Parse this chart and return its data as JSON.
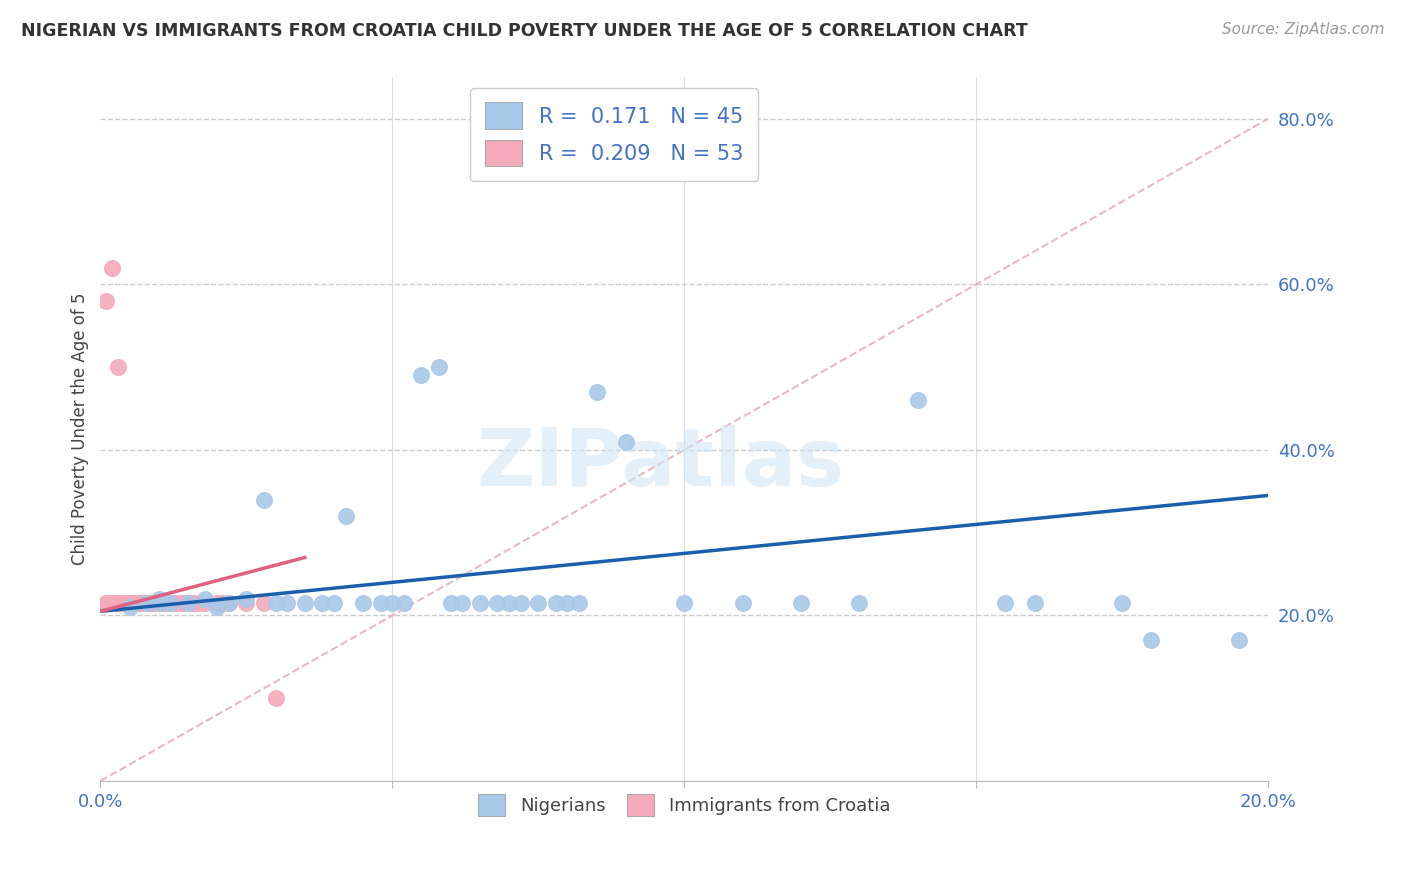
{
  "title": "NIGERIAN VS IMMIGRANTS FROM CROATIA CHILD POVERTY UNDER THE AGE OF 5 CORRELATION CHART",
  "source": "Source: ZipAtlas.com",
  "ylabel": "Child Poverty Under the Age of 5",
  "xlim": [
    0.0,
    0.2
  ],
  "ylim": [
    0.0,
    0.85
  ],
  "blue_color": "#A8C8E8",
  "pink_color": "#F4AABB",
  "blue_line_color": "#1A5FAB",
  "pink_line_color": "#E06080",
  "diag_color": "#DDAABB",
  "blue_R": 0.171,
  "blue_N": 45,
  "pink_R": 0.209,
  "pink_N": 53,
  "watermark": "ZIPatlas",
  "blue_scatter_x": [
    0.005,
    0.008,
    0.01,
    0.01,
    0.012,
    0.015,
    0.018,
    0.02,
    0.022,
    0.025,
    0.028,
    0.03,
    0.032,
    0.035,
    0.038,
    0.04,
    0.042,
    0.045,
    0.048,
    0.05,
    0.052,
    0.055,
    0.058,
    0.06,
    0.062,
    0.065,
    0.068,
    0.07,
    0.072,
    0.075,
    0.078,
    0.08,
    0.082,
    0.085,
    0.09,
    0.1,
    0.11,
    0.12,
    0.13,
    0.14,
    0.155,
    0.16,
    0.175,
    0.18,
    0.195
  ],
  "blue_scatter_y": [
    0.21,
    0.215,
    0.22,
    0.215,
    0.215,
    0.215,
    0.22,
    0.21,
    0.215,
    0.22,
    0.34,
    0.215,
    0.215,
    0.215,
    0.215,
    0.215,
    0.32,
    0.215,
    0.215,
    0.215,
    0.215,
    0.49,
    0.5,
    0.215,
    0.215,
    0.215,
    0.215,
    0.215,
    0.215,
    0.215,
    0.215,
    0.215,
    0.215,
    0.47,
    0.41,
    0.215,
    0.215,
    0.215,
    0.215,
    0.46,
    0.215,
    0.215,
    0.215,
    0.17,
    0.17
  ],
  "pink_scatter_x": [
    0.001,
    0.001,
    0.002,
    0.002,
    0.003,
    0.003,
    0.003,
    0.004,
    0.004,
    0.004,
    0.005,
    0.005,
    0.005,
    0.005,
    0.006,
    0.006,
    0.006,
    0.006,
    0.007,
    0.007,
    0.007,
    0.008,
    0.008,
    0.008,
    0.009,
    0.009,
    0.009,
    0.01,
    0.01,
    0.01,
    0.011,
    0.011,
    0.012,
    0.012,
    0.013,
    0.013,
    0.014,
    0.014,
    0.015,
    0.015,
    0.016,
    0.016,
    0.017,
    0.018,
    0.02,
    0.021,
    0.022,
    0.025,
    0.028,
    0.03,
    0.001,
    0.002,
    0.003
  ],
  "pink_scatter_y": [
    0.215,
    0.215,
    0.215,
    0.215,
    0.215,
    0.215,
    0.215,
    0.215,
    0.215,
    0.215,
    0.215,
    0.215,
    0.215,
    0.215,
    0.215,
    0.215,
    0.215,
    0.215,
    0.215,
    0.215,
    0.215,
    0.215,
    0.215,
    0.215,
    0.215,
    0.215,
    0.215,
    0.215,
    0.215,
    0.215,
    0.215,
    0.215,
    0.215,
    0.215,
    0.215,
    0.215,
    0.215,
    0.215,
    0.215,
    0.215,
    0.215,
    0.215,
    0.215,
    0.215,
    0.215,
    0.215,
    0.215,
    0.215,
    0.215,
    0.1,
    0.58,
    0.62,
    0.5
  ],
  "blue_trend_x": [
    0.0,
    0.2
  ],
  "blue_trend_y": [
    0.205,
    0.345
  ],
  "pink_trend_x": [
    0.0,
    0.035
  ],
  "pink_trend_y": [
    0.205,
    0.27
  ]
}
